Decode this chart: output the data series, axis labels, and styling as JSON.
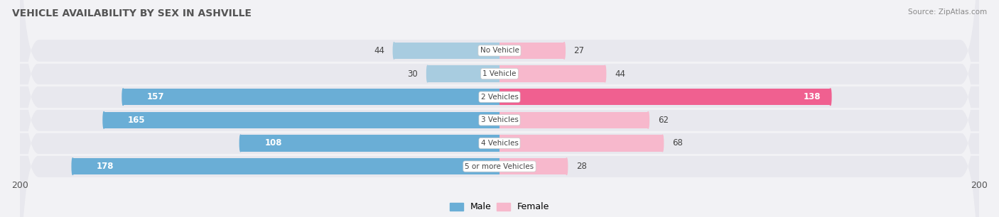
{
  "title": "Vehicle Availability by Sex in Ashville",
  "source": "Source: ZipAtlas.com",
  "categories": [
    "No Vehicle",
    "1 Vehicle",
    "2 Vehicles",
    "3 Vehicles",
    "4 Vehicles",
    "5 or more Vehicles"
  ],
  "male_values": [
    44,
    30,
    157,
    165,
    108,
    178
  ],
  "female_values": [
    27,
    44,
    138,
    62,
    68,
    28
  ],
  "male_color_small": "#a8cce0",
  "male_color_large": "#6aaed6",
  "female_color_small": "#f7b8cc",
  "female_color_large": "#f06090",
  "axis_max": 200,
  "bar_height": 0.72,
  "row_bg_color": "#e8e8ee",
  "bg_color": "#f2f2f5",
  "label_threshold": 100,
  "legend_male_color": "#6aaed6",
  "legend_female_color": "#f7b8cc"
}
